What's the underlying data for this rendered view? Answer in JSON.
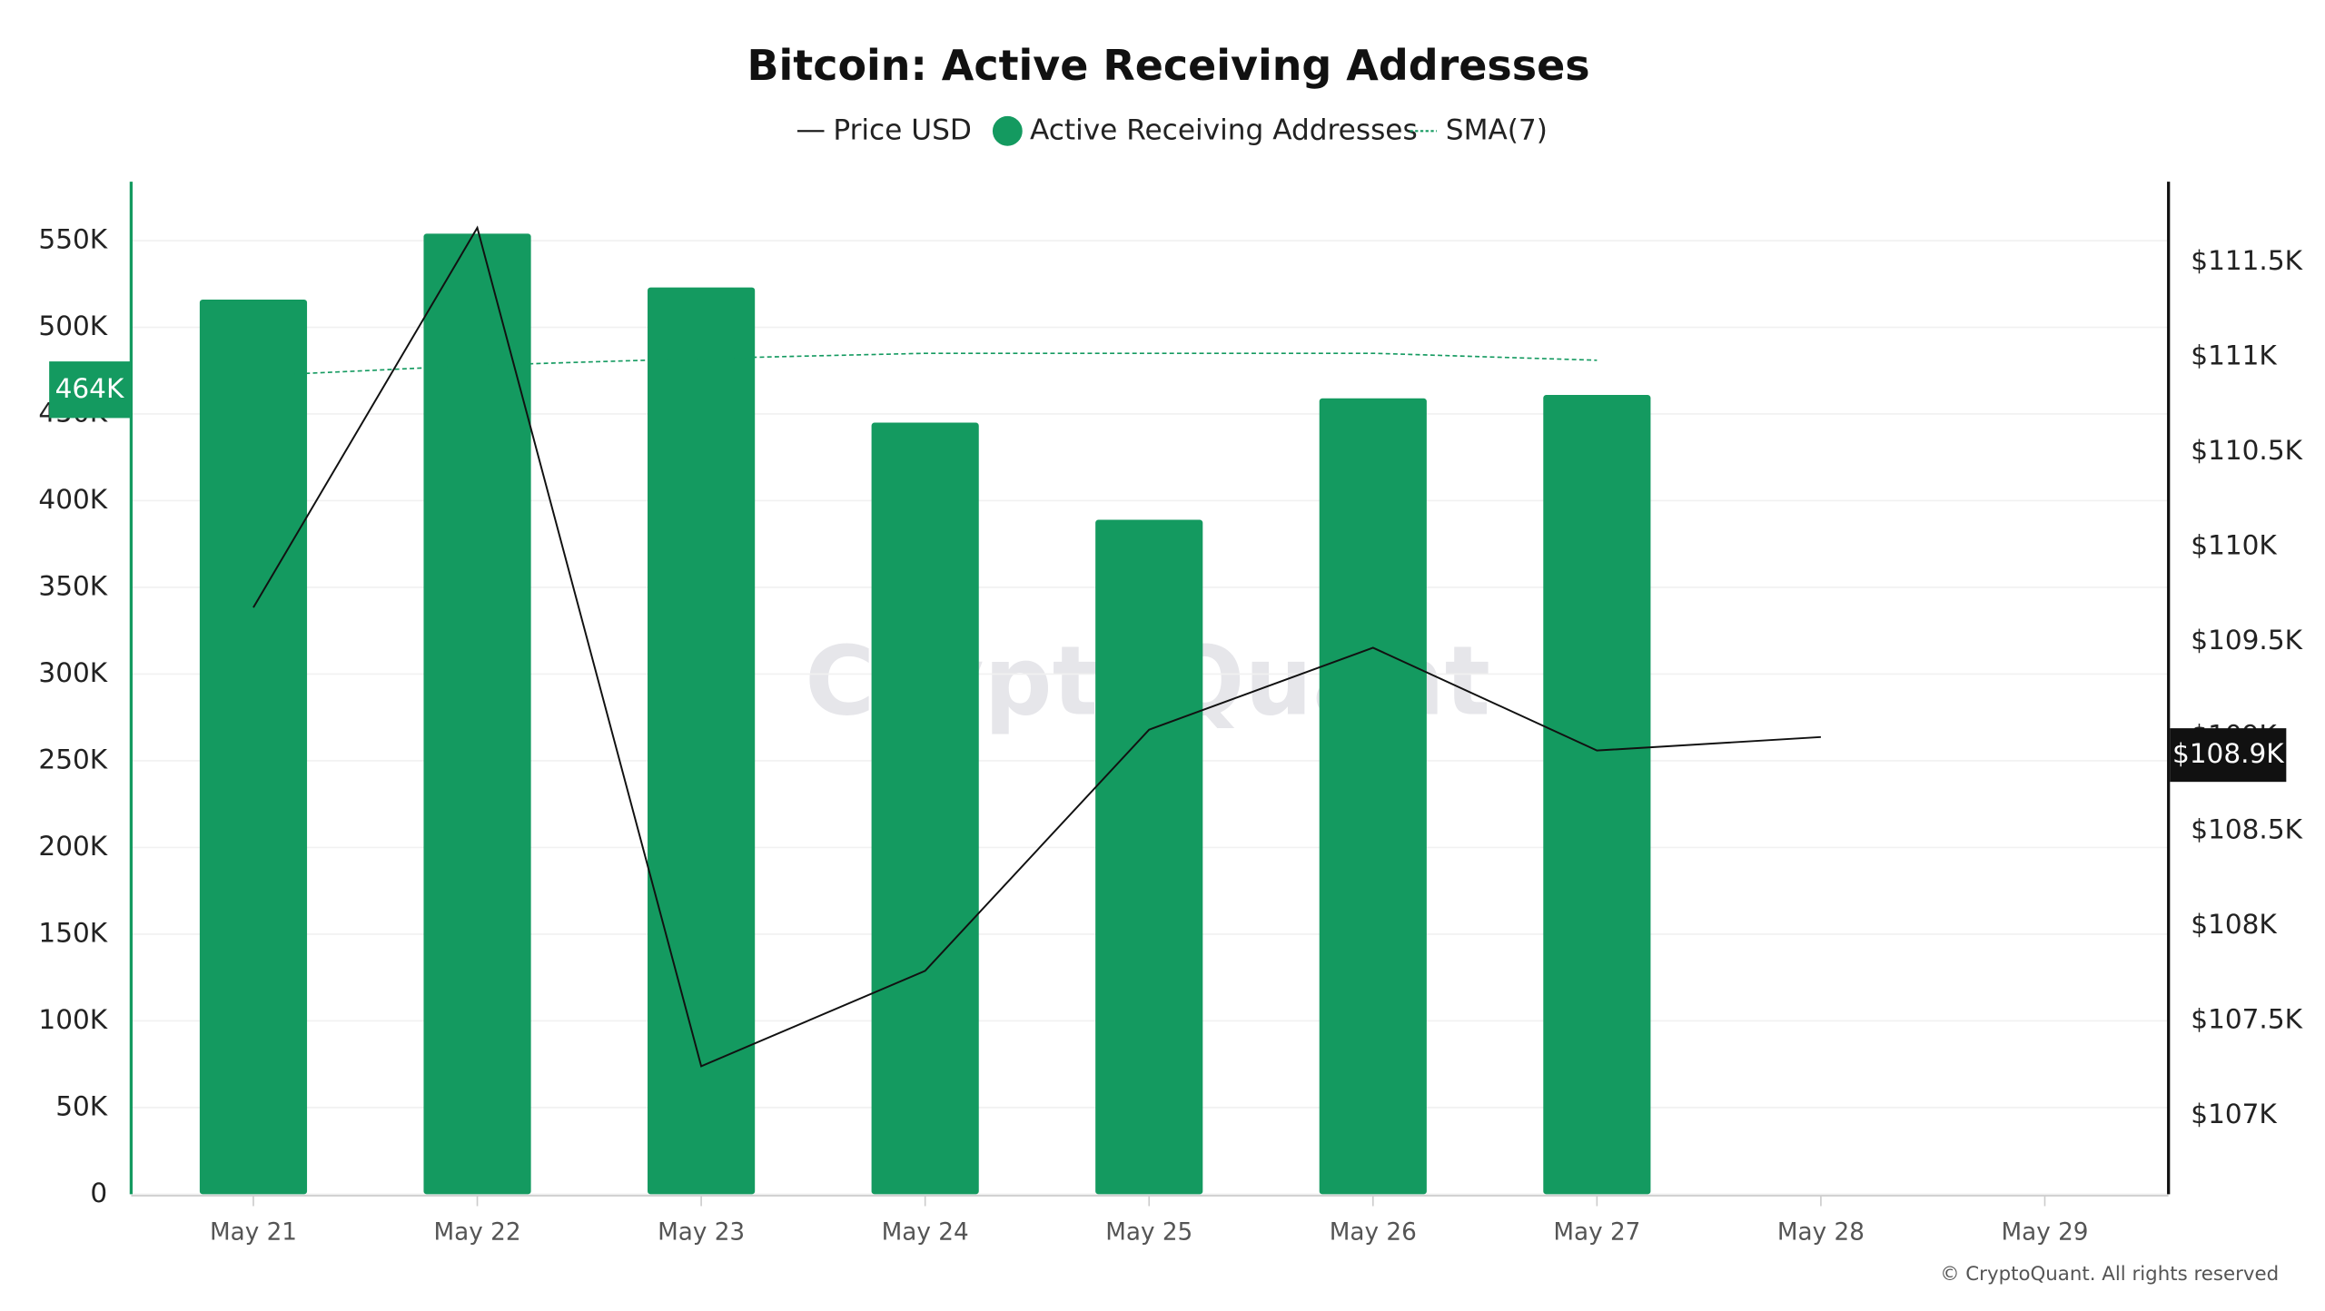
{
  "chart_data": {
    "type": "bar-line",
    "title": "Bitcoin: Active Receiving Addresses",
    "categories": [
      "May 21",
      "May 22",
      "May 23",
      "May 24",
      "May 25",
      "May 26",
      "May 27",
      "May 28",
      "May 29"
    ],
    "series": [
      {
        "name": "Price USD",
        "kind": "line",
        "color": "#111111",
        "axis": "y2",
        "values": [
          109678,
          111681,
          107259,
          107762,
          109034,
          109466,
          108924,
          108995,
          null
        ]
      },
      {
        "name": "Active Receiving Addresses",
        "kind": "bar",
        "color": "#149a60",
        "values": [
          516000,
          554000,
          523000,
          445000,
          389000,
          459000,
          461000,
          null,
          null
        ]
      },
      {
        "name": "SMA(7)",
        "kind": "dashed-line",
        "color": "#149a60",
        "values": [
          472000,
          478000,
          482000,
          485000,
          485000,
          485000,
          481000,
          null,
          null
        ]
      }
    ],
    "ylim": [
      0,
      584000
    ],
    "yticks": [
      0,
      {
        "value": 50000,
        "label": "50K"
      },
      {
        "value": 100000,
        "label": "100K"
      },
      {
        "value": 150000,
        "label": "150K"
      },
      {
        "value": 200000,
        "label": "200K"
      },
      {
        "value": 250000,
        "label": "250K"
      },
      {
        "value": 300000,
        "label": "300K"
      },
      {
        "value": 350000,
        "label": "350K"
      },
      {
        "value": 400000,
        "label": "400K"
      },
      {
        "value": 450000,
        "label": "450K"
      },
      {
        "value": 500000,
        "label": "500K"
      },
      {
        "value": 550000,
        "label": "550K"
      }
    ],
    "y2lim": [
      106584,
      111924
    ],
    "y2ticks": [
      {
        "value": 107000,
        "label": "$107K"
      },
      {
        "value": 107500,
        "label": "$107.5K"
      },
      {
        "value": 108000,
        "label": "$108K"
      },
      {
        "value": 108500,
        "label": "$108.5K"
      },
      {
        "value": 109000,
        "label": "$109K"
      },
      {
        "value": 109500,
        "label": "$109.5K"
      },
      {
        "value": 110000,
        "label": "$110K"
      },
      {
        "value": 110500,
        "label": "$110.5K"
      },
      {
        "value": 111000,
        "label": "$111K"
      },
      {
        "value": 111500,
        "label": "$111.5K"
      }
    ],
    "y_marker": {
      "value": 464000,
      "label": "464K"
    },
    "y2_marker": {
      "value": 108900,
      "label": "$108.9K"
    },
    "grid": true,
    "legend": "top",
    "watermark": "CryptoQuant",
    "copyright": "© CryptoQuant. All rights reserved"
  }
}
